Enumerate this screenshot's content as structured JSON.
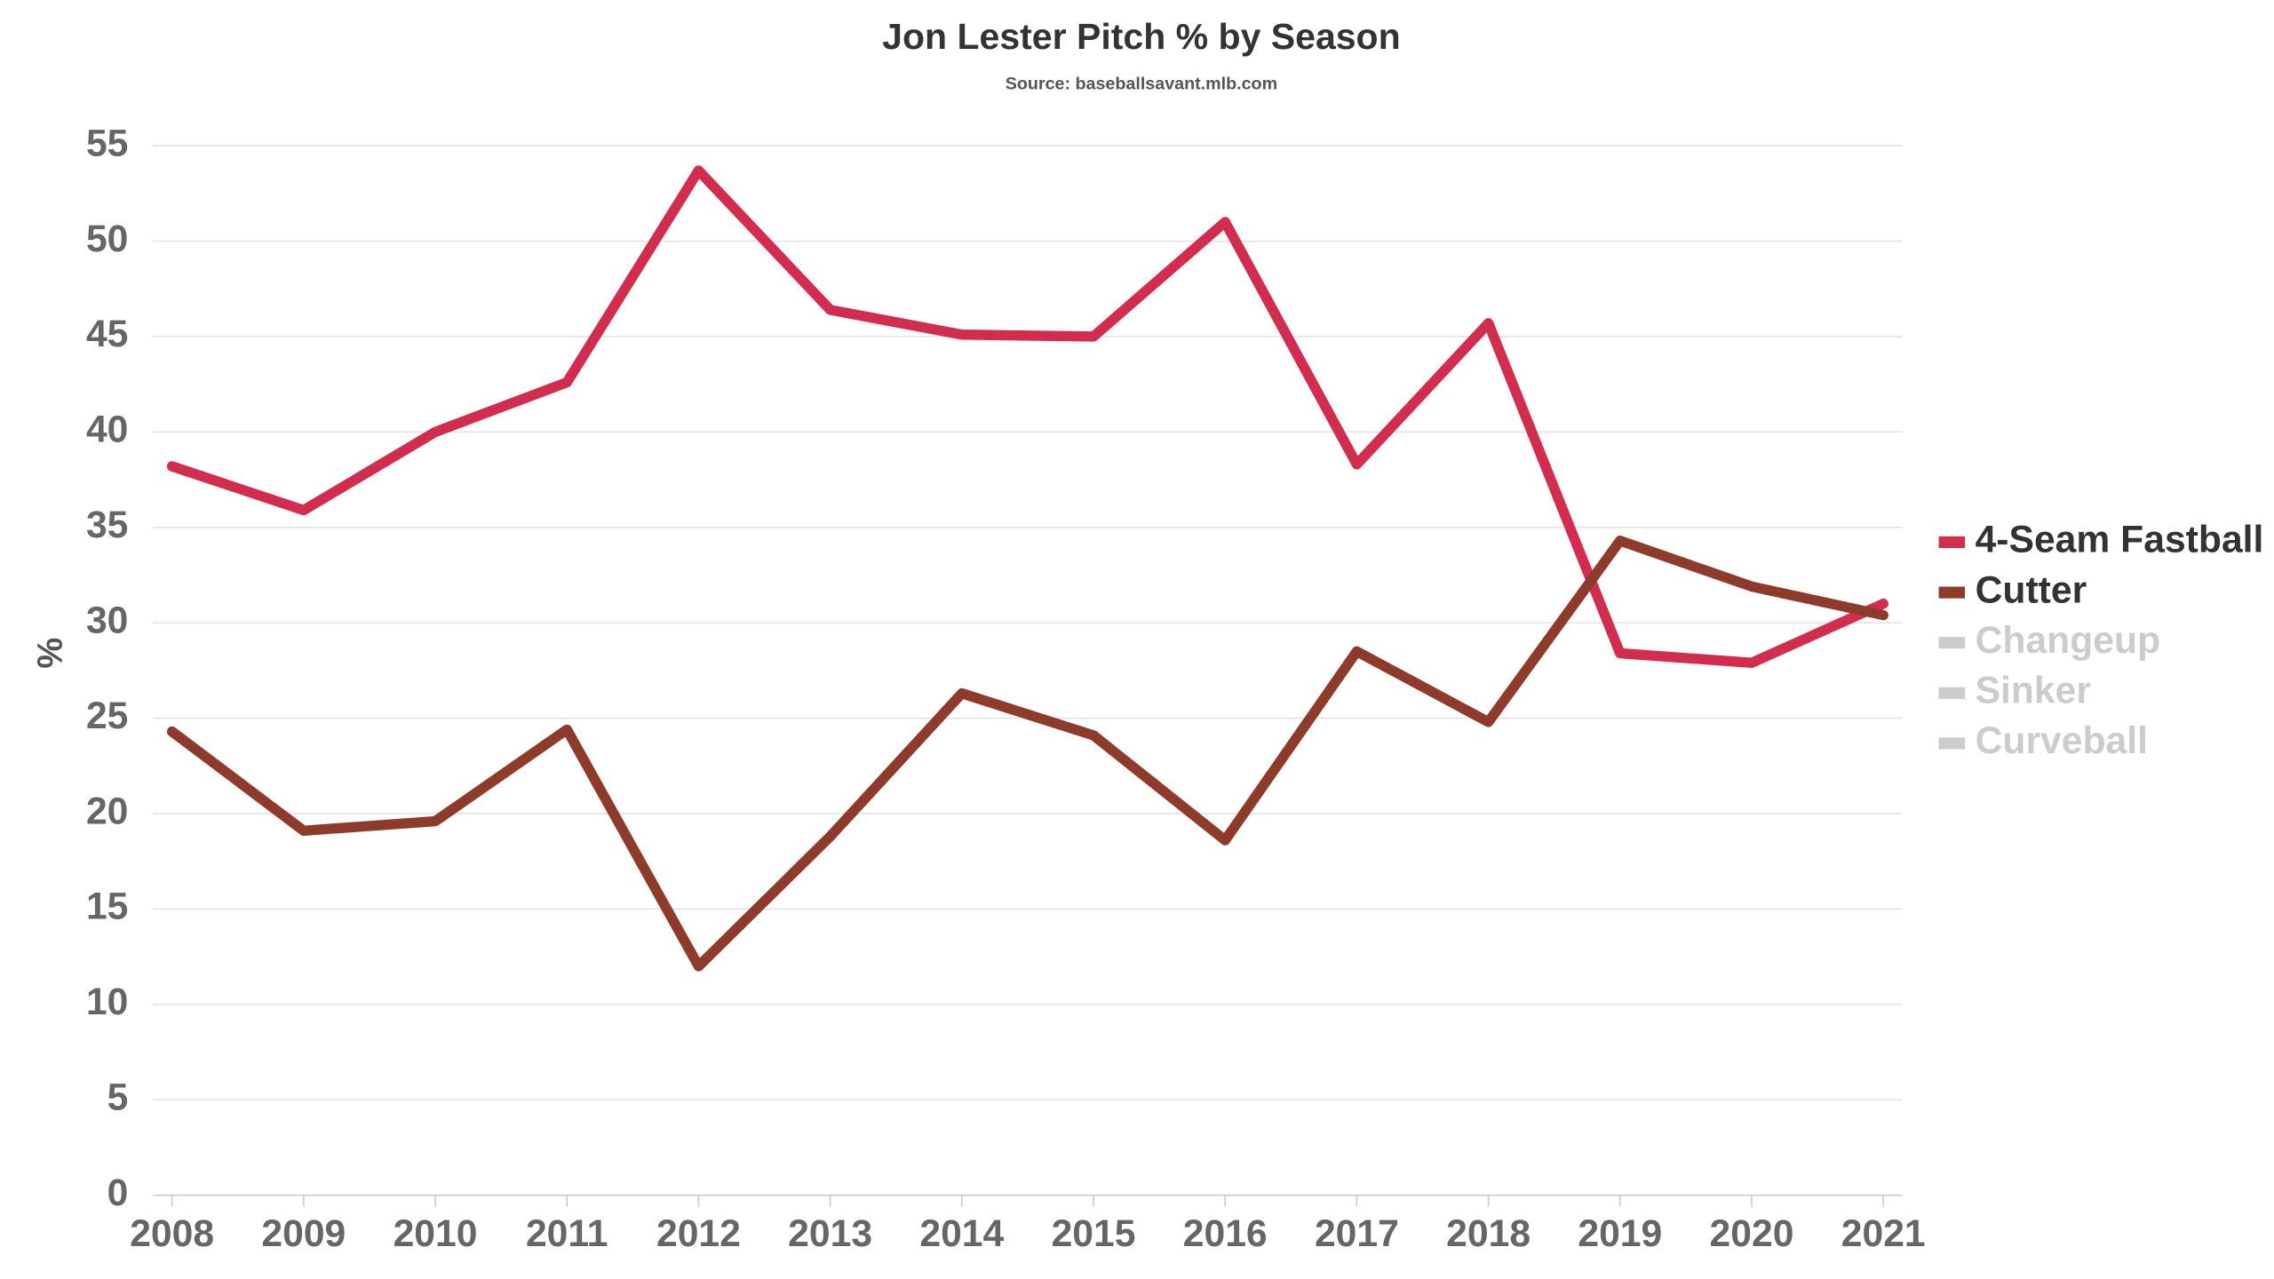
{
  "chart_data": {
    "type": "line",
    "title": "Jon Lester Pitch % by Season",
    "subtitle": "Source: baseballsavant.mlb.com",
    "y_label": "%",
    "categories": [
      "2008",
      "2009",
      "2010",
      "2011",
      "2012",
      "2013",
      "2014",
      "2015",
      "2016",
      "2017",
      "2018",
      "2019",
      "2020",
      "2021"
    ],
    "series": [
      {
        "name": "4-Seam Fastball",
        "color": "#d22d4f",
        "visible": true,
        "values": [
          38.2,
          35.9,
          40.0,
          42.6,
          53.7,
          46.4,
          45.1,
          45.0,
          51.0,
          38.3,
          45.7,
          28.4,
          27.9,
          31.0
        ]
      },
      {
        "name": "Cutter",
        "color": "#8e3b2b",
        "visible": true,
        "values": [
          24.3,
          19.1,
          19.6,
          24.4,
          12.0,
          18.8,
          26.3,
          24.1,
          18.6,
          28.5,
          24.8,
          34.3,
          31.9,
          30.4
        ]
      },
      {
        "name": "Changeup",
        "color": "#cccccc",
        "visible": false,
        "values": [
          null,
          null,
          null,
          null,
          null,
          null,
          null,
          null,
          null,
          null,
          null,
          null,
          null,
          null
        ]
      },
      {
        "name": "Sinker",
        "color": "#cccccc",
        "visible": false,
        "values": [
          null,
          null,
          null,
          null,
          null,
          null,
          null,
          null,
          null,
          null,
          null,
          null,
          null,
          null
        ]
      },
      {
        "name": "Curveball",
        "color": "#cccccc",
        "visible": false,
        "values": [
          null,
          null,
          null,
          null,
          null,
          null,
          null,
          null,
          null,
          null,
          null,
          null,
          null,
          null
        ]
      }
    ],
    "ylim": [
      0,
      55
    ],
    "yticks": [
      0,
      5,
      10,
      15,
      20,
      25,
      30,
      35,
      40,
      45,
      50,
      55
    ],
    "grid": true,
    "legend": "right"
  }
}
